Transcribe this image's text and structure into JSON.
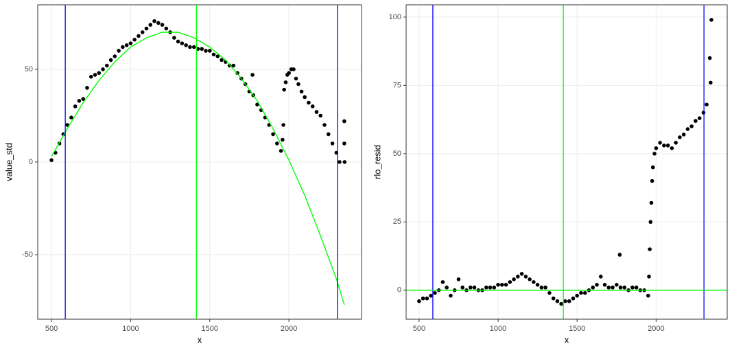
{
  "chart_data": [
    {
      "type": "scatter",
      "x_label": "x",
      "y_label": "value_std",
      "grid": true,
      "point_color": "#000000",
      "xlim": [
        413,
        2459
      ],
      "ylim": [
        -84.8,
        84.8
      ],
      "xticks": [
        500,
        1000,
        1500,
        2000
      ],
      "yticks": [
        -50,
        0,
        50
      ],
      "points": {
        "x": [
          500,
          525,
          550,
          575,
          600,
          625,
          650,
          675,
          700,
          725,
          750,
          775,
          800,
          825,
          850,
          875,
          900,
          925,
          950,
          975,
          1000,
          1025,
          1050,
          1075,
          1100,
          1125,
          1150,
          1175,
          1200,
          1225,
          1250,
          1275,
          1300,
          1325,
          1350,
          1375,
          1400,
          1425,
          1450,
          1475,
          1500,
          1525,
          1550,
          1575,
          1600,
          1625,
          1650,
          1675,
          1700,
          1725,
          1750,
          1770,
          1775,
          1800,
          1825,
          1850,
          1875,
          1900,
          1925,
          1950,
          1960,
          1965,
          1970,
          1980,
          1990,
          2000,
          2015,
          2030,
          2045,
          2060,
          2080,
          2100,
          2125,
          2150,
          2175,
          2200,
          2225,
          2250,
          2275,
          2300,
          2320,
          2350,
          2350,
          2352
        ],
        "values": [
          1,
          5,
          10,
          15,
          20,
          24,
          30,
          33,
          34,
          40,
          46,
          47,
          48,
          50,
          52,
          55,
          57,
          60,
          62,
          63,
          64,
          66,
          68,
          70,
          72,
          74,
          76,
          75,
          74,
          72,
          70,
          67,
          65,
          64,
          63,
          62,
          62,
          61,
          61,
          60,
          60,
          58,
          57,
          55,
          54,
          52,
          52,
          48,
          45,
          42,
          38,
          47,
          36,
          31,
          28,
          24,
          20,
          15,
          10,
          6,
          12,
          20,
          39,
          43,
          47,
          48,
          50,
          50,
          45,
          42,
          38,
          35,
          32,
          30,
          27,
          25,
          20,
          15,
          10,
          5,
          0,
          22,
          10,
          0
        ]
      },
      "fit": {
        "color": "#00ff00",
        "x": [
          500,
          600,
          700,
          800,
          900,
          1000,
          1100,
          1200,
          1300,
          1400,
          1500,
          1600,
          1700,
          1800,
          1900,
          2000,
          2100,
          2200,
          2300,
          2350
        ],
        "values": [
          3,
          18,
          32,
          44,
          54,
          62,
          67,
          70,
          70,
          67,
          62,
          55,
          45,
          33,
          18,
          1,
          -18,
          -40,
          -63,
          -77
        ]
      },
      "vlines": [
        {
          "value": 587,
          "color": "#0000ff"
        },
        {
          "value": 1416,
          "color": "#00ff00"
        },
        {
          "value": 2307,
          "color": "#0000ff"
        }
      ],
      "hlines": []
    },
    {
      "type": "scatter",
      "x_label": "x",
      "y_label": "rlo_resid",
      "grid": true,
      "point_color": "#000000",
      "xlim": [
        418,
        2450
      ],
      "ylim": [
        -10.6,
        104.5
      ],
      "xticks": [
        500,
        1000,
        1500,
        2000
      ],
      "yticks": [
        0,
        25,
        50,
        75,
        100
      ],
      "points": {
        "x": [
          500,
          525,
          550,
          575,
          600,
          625,
          650,
          675,
          700,
          725,
          750,
          775,
          800,
          825,
          850,
          875,
          900,
          925,
          950,
          975,
          1000,
          1025,
          1050,
          1075,
          1100,
          1125,
          1150,
          1175,
          1200,
          1225,
          1250,
          1275,
          1300,
          1325,
          1350,
          1375,
          1400,
          1425,
          1450,
          1475,
          1500,
          1525,
          1550,
          1575,
          1600,
          1625,
          1650,
          1675,
          1700,
          1725,
          1750,
          1770,
          1775,
          1800,
          1825,
          1850,
          1875,
          1900,
          1925,
          1950,
          1955,
          1960,
          1965,
          1970,
          1975,
          1980,
          1990,
          2000,
          2025,
          2050,
          2075,
          2100,
          2125,
          2150,
          2175,
          2200,
          2225,
          2250,
          2275,
          2300,
          2320,
          2340,
          2345,
          2350
        ],
        "values": [
          -4,
          -3,
          -3,
          -2,
          -1,
          0,
          3,
          1,
          -2,
          0,
          4,
          1,
          0,
          1,
          1,
          0,
          0,
          1,
          1,
          1,
          2,
          2,
          2,
          3,
          4,
          5,
          6,
          5,
          4,
          3,
          2,
          1,
          1,
          -1,
          -3,
          -4,
          -5,
          -4,
          -4,
          -3,
          -2,
          -1,
          -1,
          0,
          1,
          2,
          5,
          2,
          1,
          1,
          2,
          13,
          1,
          1,
          0,
          1,
          1,
          0,
          0,
          -2,
          5,
          15,
          25,
          32,
          40,
          45,
          50,
          52,
          54,
          53,
          53,
          52,
          54,
          56,
          57,
          59,
          60,
          62,
          63,
          65,
          68,
          85,
          76,
          99
        ]
      },
      "fit": null,
      "vlines": [
        {
          "value": 587,
          "color": "#0000ff"
        },
        {
          "value": 1413,
          "color": "#00ff00"
        },
        {
          "value": 2303,
          "color": "#0000ff"
        }
      ],
      "hlines": [
        {
          "value": 0,
          "color": "#00ff00"
        }
      ]
    }
  ]
}
